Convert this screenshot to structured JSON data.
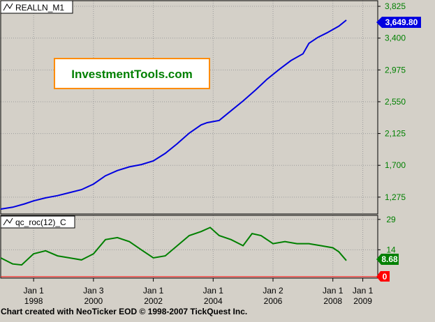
{
  "upper_panel": {
    "series_label": "REALLN_M1",
    "current_value_label": "3,649.80",
    "watermark": "InvestmentTools.com",
    "y_ticks": [
      "3,825",
      "3,400",
      "2,975",
      "2,550",
      "2,125",
      "1,700",
      "1,275"
    ]
  },
  "lower_panel": {
    "series_label": "qc_roc(12)_C",
    "current_value_label": "8.68",
    "zero_label": "0",
    "y_ticks": [
      "29",
      "14"
    ]
  },
  "x_axis": [
    {
      "line1": "Jan 1",
      "line2": "1998"
    },
    {
      "line1": "Jan 3",
      "line2": "2000"
    },
    {
      "line1": "Jan 1",
      "line2": "2002"
    },
    {
      "line1": "Jan 1",
      "line2": "2004"
    },
    {
      "line1": "Jan 2",
      "line2": "2006"
    },
    {
      "line1": "Jan 1",
      "line2": "2008"
    },
    {
      "line1": "Jan 1",
      "line2": "2009"
    }
  ],
  "footer": "Chart created with NeoTicker EOD © 1998-2007 TickQuest Inc.",
  "colors": {
    "background": "#d4d0c8",
    "grid": "#9c9c9c",
    "price_line": "#0000e0",
    "roc_line": "#008000",
    "price_badge": "#0000e0",
    "roc_badge": "#008000",
    "zero_badge": "#ff0000",
    "watermark_border": "#ff8c00",
    "watermark_text": "#008000",
    "axis_text_upper": "#008000",
    "axis_text_lower": "#008000"
  },
  "chart_data": [
    {
      "type": "line",
      "series": [
        {
          "name": "REALLN_M1",
          "x": [
            1996.9,
            1997.3,
            1997.7,
            1998.0,
            1998.4,
            1998.8,
            1999.2,
            1999.6,
            2000.0,
            2000.4,
            2000.8,
            2001.2,
            2001.6,
            2002.0,
            2002.4,
            2002.8,
            2003.2,
            2003.6,
            2003.8,
            2004.2,
            2004.6,
            2005.0,
            2005.4,
            2005.8,
            2006.2,
            2006.6,
            2007.0,
            2007.2,
            2007.5,
            2007.8,
            2008.2,
            2008.45
          ],
          "values": [
            1115,
            1140,
            1185,
            1225,
            1265,
            1295,
            1335,
            1375,
            1450,
            1560,
            1630,
            1680,
            1710,
            1760,
            1860,
            1990,
            2130,
            2240,
            2270,
            2300,
            2430,
            2560,
            2700,
            2850,
            2980,
            3100,
            3190,
            3330,
            3410,
            3470,
            3560,
            3640
          ]
        }
      ],
      "ylim": [
        1050,
        3900
      ],
      "y_ticks": [
        3825,
        3400,
        2975,
        2550,
        2125,
        1700,
        1275
      ]
    },
    {
      "type": "line",
      "series": [
        {
          "name": "qc_roc(12)_C",
          "x": [
            1996.9,
            1997.3,
            1997.6,
            1998.0,
            1998.4,
            1998.8,
            1999.2,
            1999.6,
            2000.0,
            2000.4,
            2000.8,
            2001.2,
            2001.6,
            2002.0,
            2002.4,
            2002.8,
            2003.2,
            2003.6,
            2003.9,
            2004.2,
            2004.6,
            2005.0,
            2005.3,
            2005.6,
            2006.0,
            2006.4,
            2006.8,
            2007.2,
            2007.6,
            2008.0,
            2008.2,
            2008.45
          ],
          "values": [
            10,
            7,
            6.5,
            12,
            13.5,
            11,
            10,
            9,
            12,
            19,
            20,
            18,
            14,
            10,
            11,
            16,
            21,
            23,
            25,
            21,
            19,
            16,
            22,
            21,
            17,
            18,
            17,
            17,
            16,
            15,
            13,
            8.68
          ]
        }
      ],
      "ylim": [
        0,
        31
      ],
      "y_ticks": [
        29,
        14
      ]
    }
  ]
}
